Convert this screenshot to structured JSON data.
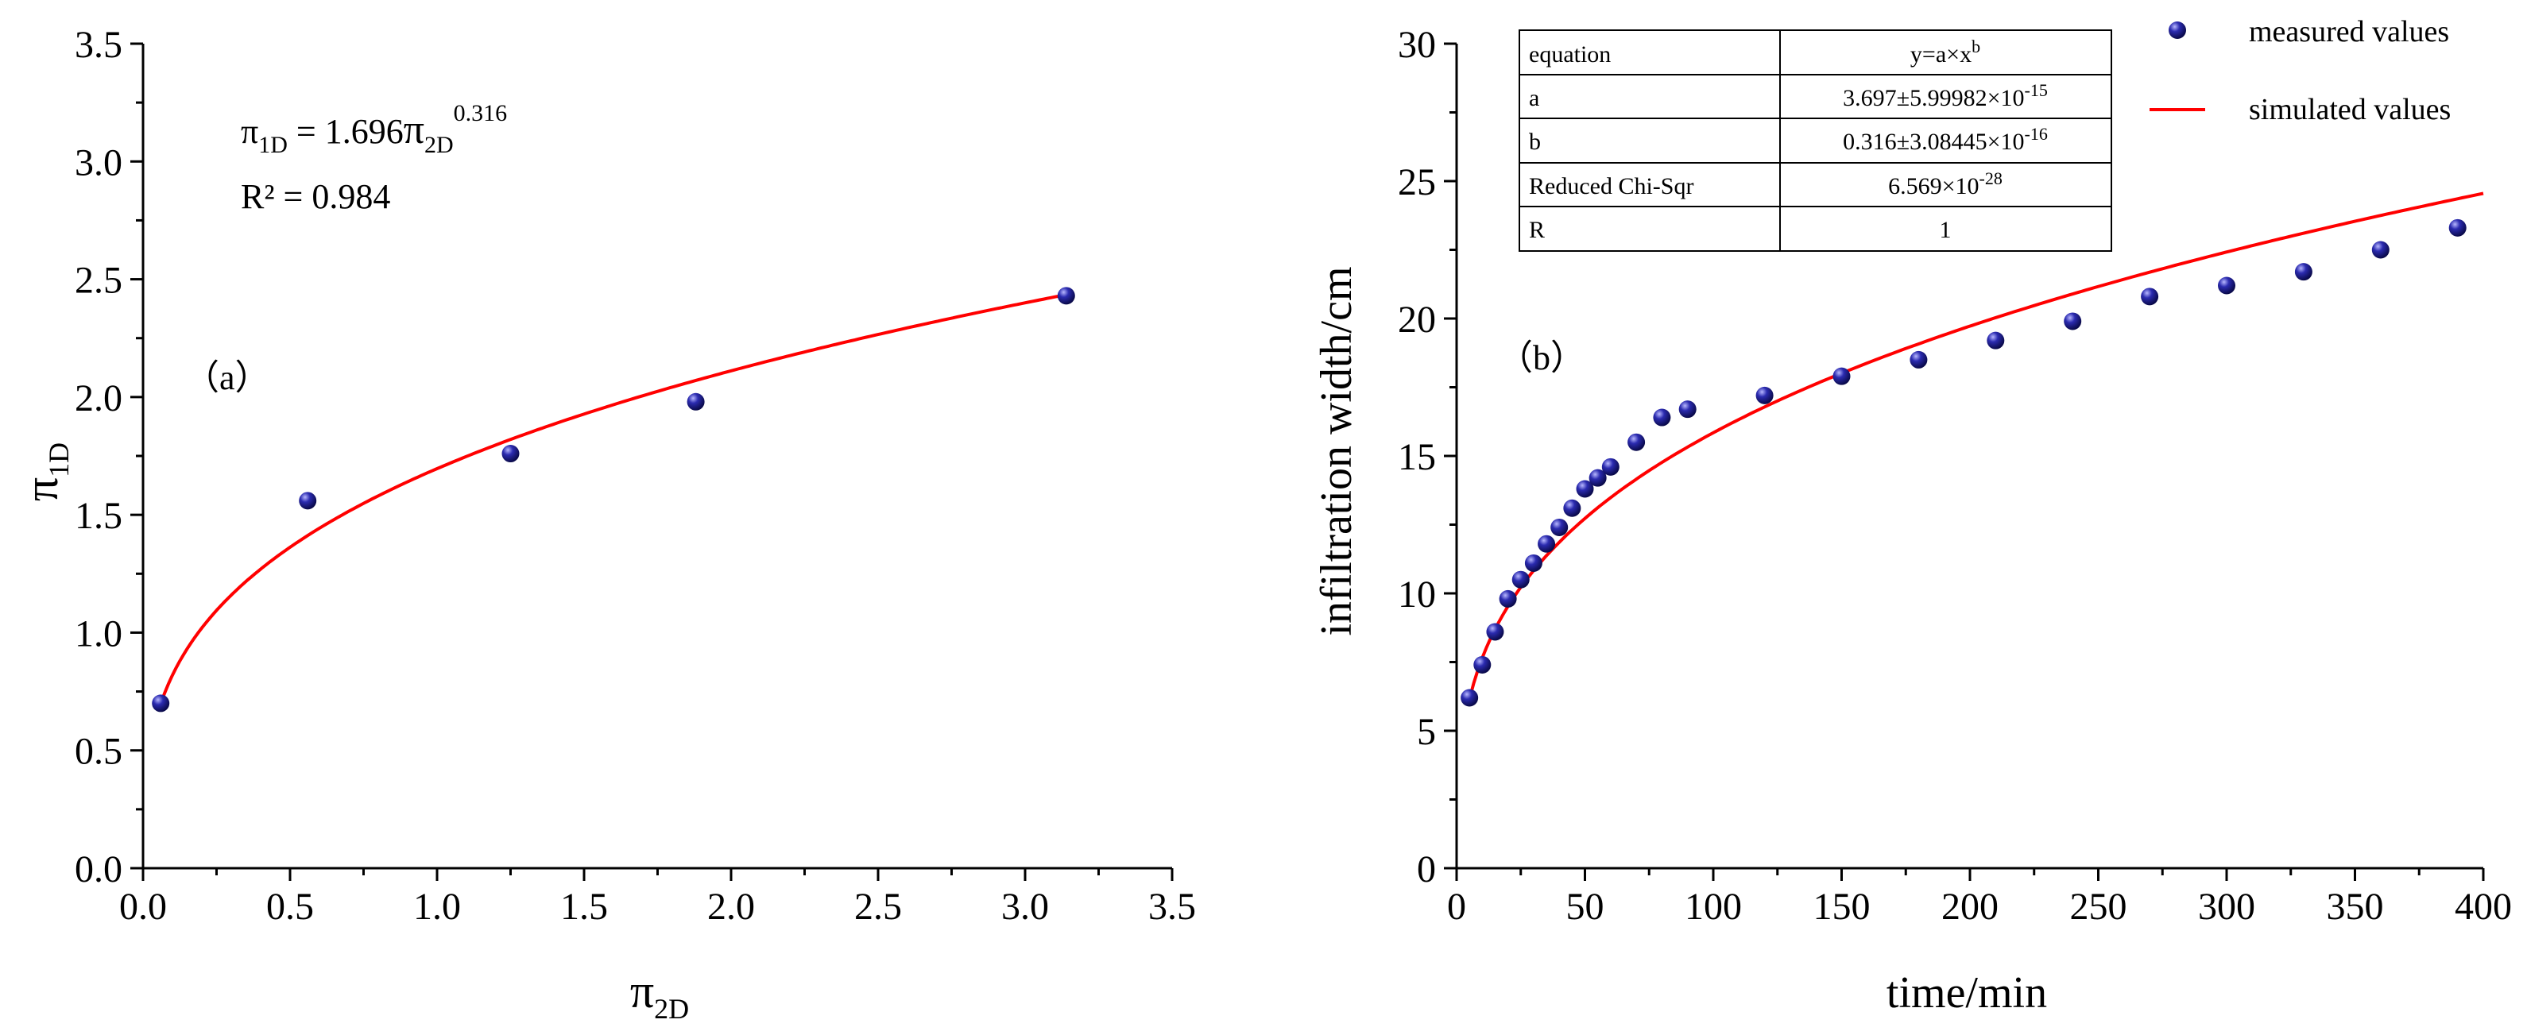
{
  "colors": {
    "measured": "#1a1a8c",
    "simulated": "#ff0000",
    "axis": "#000000"
  },
  "chart_data": [
    {
      "id": "a",
      "type": "scatter",
      "panel_label": "（a）",
      "xlabel": {
        "main": "π",
        "sub": "2D"
      },
      "ylabel": {
        "main": "π",
        "sub": "1D"
      },
      "xlim": [
        0.0,
        3.5
      ],
      "ylim": [
        0.0,
        3.5
      ],
      "xticks": [
        0.0,
        0.5,
        1.0,
        1.5,
        2.0,
        2.5,
        3.0,
        3.5
      ],
      "xtick_labels": [
        "0.0",
        "0.5",
        "1.0",
        "1.5",
        "2.0",
        "2.5",
        "3.0",
        "3.5"
      ],
      "yticks": [
        0.0,
        0.5,
        1.0,
        1.5,
        2.0,
        2.5,
        3.0,
        3.5
      ],
      "ytick_labels": [
        "0.0",
        "0.5",
        "1.0",
        "1.5",
        "2.0",
        "2.5",
        "3.0",
        "3.5"
      ],
      "equation": {
        "lhs": "π",
        "lhs_sub": "1D",
        "mid": " = 1.696",
        "rhs": "π",
        "rhs_sub": "2D",
        "exp": "0.316"
      },
      "r2_text": "R² = 0.984",
      "points": {
        "x": [
          0.06,
          0.56,
          1.25,
          1.88,
          3.14
        ],
        "y": [
          0.7,
          1.56,
          1.76,
          1.98,
          2.43
        ]
      },
      "fit": {
        "a": 1.696,
        "b": 0.316,
        "x_start": 0.06,
        "x_end": 3.14
      }
    },
    {
      "id": "b",
      "type": "scatter",
      "panel_label": "（b）",
      "xlabel": "time/min",
      "ylabel": "infiltration width/cm",
      "xlim": [
        0,
        400
      ],
      "ylim": [
        0,
        30
      ],
      "xticks": [
        0,
        50,
        100,
        150,
        200,
        250,
        300,
        350,
        400
      ],
      "xtick_labels": [
        "0",
        "50",
        "100",
        "150",
        "200",
        "250",
        "300",
        "350",
        "400"
      ],
      "yticks": [
        0,
        5,
        10,
        15,
        20,
        25,
        30
      ],
      "ytick_labels": [
        "0",
        "5",
        "10",
        "15",
        "20",
        "25",
        "30"
      ],
      "legend": {
        "measured": "measured values",
        "simulated": "simulated values"
      },
      "table": {
        "rows": [
          {
            "label": "equation",
            "base": "y=a×x",
            "sup": "b"
          },
          {
            "label": "a",
            "base": "3.697±5.99982×10",
            "sup": "-15"
          },
          {
            "label": "b",
            "base": "0.316±3.08445×10",
            "sup": "-16"
          },
          {
            "label": "Reduced Chi-Sqr",
            "base": "6.569×10",
            "sup": "-28"
          },
          {
            "label": "R",
            "base": "1",
            "sup": ""
          }
        ]
      },
      "points": {
        "x": [
          5,
          10,
          15,
          20,
          25,
          30,
          35,
          40,
          45,
          50,
          55,
          60,
          70,
          80,
          90,
          120,
          150,
          180,
          210,
          240,
          270,
          300,
          330,
          360,
          390
        ],
        "y": [
          6.2,
          7.4,
          8.6,
          9.8,
          10.5,
          11.1,
          11.8,
          12.4,
          13.1,
          13.8,
          14.2,
          14.6,
          15.5,
          16.4,
          16.7,
          17.2,
          17.9,
          18.5,
          19.2,
          19.9,
          20.8,
          21.2,
          21.7,
          22.5,
          23.3
        ]
      },
      "fit": {
        "a": 3.697,
        "b": 0.316,
        "x_start": 5,
        "x_end": 400
      }
    }
  ]
}
